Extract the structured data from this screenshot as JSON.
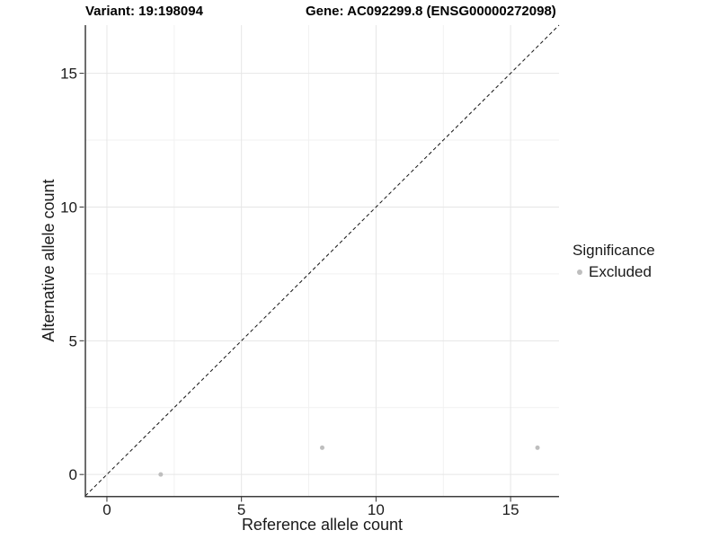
{
  "chart_data": {
    "type": "scatter",
    "titles": {
      "variant": "Variant: 19:198094",
      "gene": "Gene: AC092299.8 (ENSG00000272098)"
    },
    "xlabel": "Reference allele count",
    "ylabel": "Alternative allele count",
    "xlim": [
      -0.8,
      16.8
    ],
    "ylim": [
      -0.8,
      16.8
    ],
    "x_ticks": [
      0,
      5,
      10,
      15
    ],
    "y_ticks": [
      0,
      5,
      10,
      15
    ],
    "x_minor_ticks": [
      2.5,
      7.5,
      12.5
    ],
    "y_minor_ticks": [
      2.5,
      7.5,
      12.5
    ],
    "grid": true,
    "series": [
      {
        "name": "Excluded",
        "color": "#bebebe",
        "points": [
          {
            "x": 2,
            "y": 0
          },
          {
            "x": 8,
            "y": 1
          },
          {
            "x": 16,
            "y": 1
          }
        ]
      }
    ],
    "identity_line": {
      "style": "dashed",
      "color": "#111111",
      "from": [
        -0.8,
        -0.8
      ],
      "to": [
        16.8,
        16.8
      ]
    },
    "legend": {
      "title": "Significance",
      "position": "right",
      "entries": [
        {
          "label": "Excluded",
          "color": "#bebebe"
        }
      ]
    }
  },
  "colors": {
    "background": "#ffffff",
    "grid_major": "#e6e6e6",
    "grid_minor": "#f1f1f1",
    "axis_line": "#3d3d3d",
    "tick_mark": "#333333",
    "tick_text": "#1a1a1a",
    "point": "#bebebe"
  }
}
